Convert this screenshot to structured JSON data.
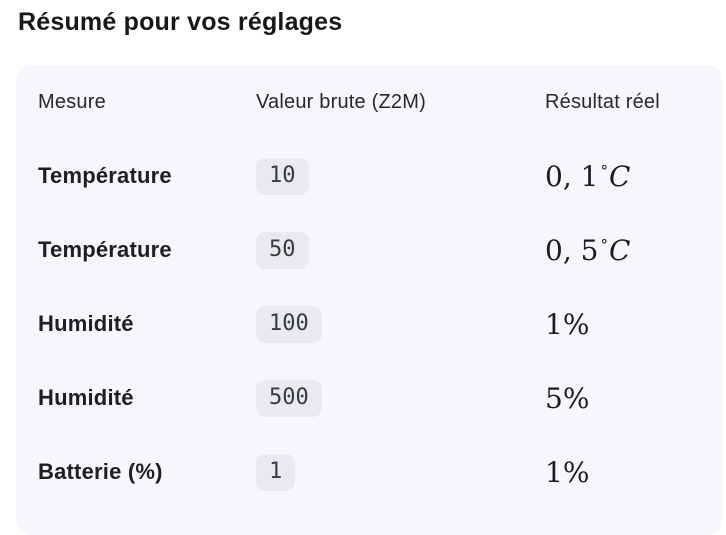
{
  "title": "Résumé pour vos réglages",
  "colors": {
    "panel_bg": "#f6f7fc",
    "badge_bg": "#e8eaef",
    "title_text": "#17181c",
    "body_text": "#1d1f24"
  },
  "table": {
    "headers": [
      "Mesure",
      "Valeur brute (Z2M)",
      "Résultat réel"
    ],
    "rows": [
      {
        "measure": "Température",
        "raw": "10",
        "result": {
          "num": "0, 1",
          "deg": "°",
          "unit": "C"
        }
      },
      {
        "measure": "Température",
        "raw": "50",
        "result": {
          "num": "0, 5",
          "deg": "°",
          "unit": "C"
        }
      },
      {
        "measure": "Humidité",
        "raw": "100",
        "result": {
          "num": "1%",
          "deg": "",
          "unit": ""
        }
      },
      {
        "measure": "Humidité",
        "raw": "500",
        "result": {
          "num": "5%",
          "deg": "",
          "unit": ""
        }
      },
      {
        "measure": "Batterie (%)",
        "raw": "1",
        "result": {
          "num": "1%",
          "deg": "",
          "unit": ""
        }
      }
    ]
  }
}
